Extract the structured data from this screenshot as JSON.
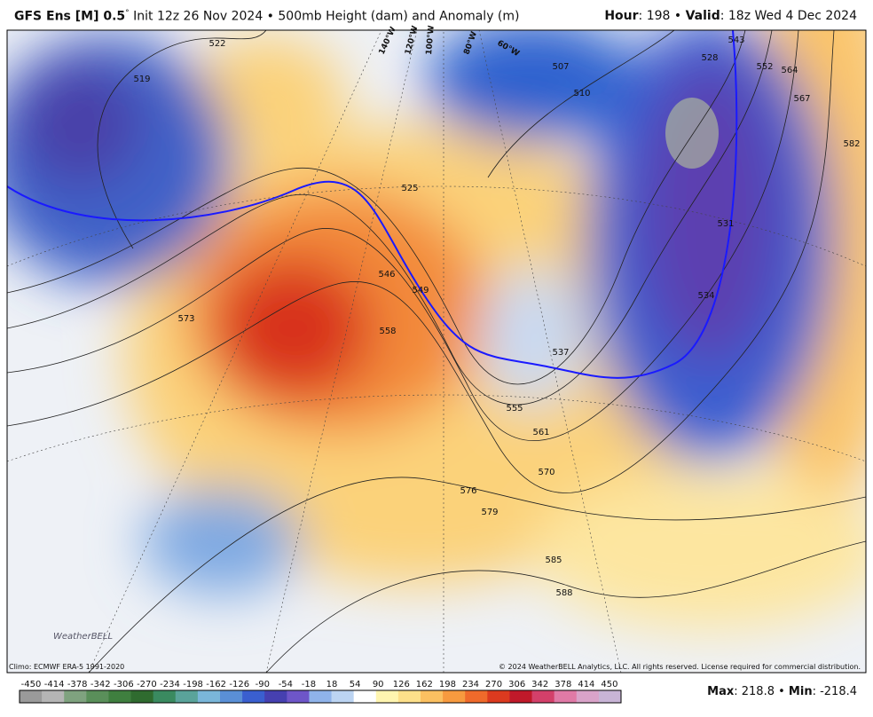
{
  "header": {
    "model": "GFS Ens [M] 0.5",
    "degree": "°",
    "description": "Init 12z 26 Nov 2024 • 500mb Height (dam) and Anomaly (m)",
    "hour_label": "Hour",
    "hour_value": ": 198 • ",
    "valid_label": "Valid",
    "valid_value": ": 18z Wed 4 Dec 2024"
  },
  "map": {
    "contour_labels": [
      "522",
      "519",
      "573",
      "546",
      "549",
      "558",
      "555",
      "561",
      "570",
      "576",
      "579",
      "585",
      "588",
      "507",
      "510",
      "528",
      "543",
      "552",
      "564",
      "567",
      "582",
      "531",
      "534",
      "525",
      "537"
    ],
    "longitude_labels": [
      "140°W",
      "120°W",
      "100°W",
      "80°W",
      "60°W"
    ]
  },
  "footer": {
    "climo": "Climo: ECMWF ERA-5 1991-2020",
    "copyright": "© 2024 WeatherBELL Analytics, LLC. All rights reserved. License required for commercial distribution.",
    "logo": "WeatherBELL"
  },
  "colorbar": {
    "ticks": [
      "-450",
      "-414",
      "-378",
      "-342",
      "-306",
      "-270",
      "-234",
      "-198",
      "-162",
      "-126",
      "-90",
      "-54",
      "-18",
      "18",
      "54",
      "90",
      "126",
      "162",
      "198",
      "234",
      "270",
      "306",
      "342",
      "378",
      "414",
      "450"
    ],
    "colors": [
      "#9a9a9a",
      "#b5b5b5",
      "#7fa27f",
      "#5a8f5a",
      "#3f7f3f",
      "#2f6b2f",
      "#3a8a60",
      "#5aa39a",
      "#7ab6d9",
      "#5a8fd6",
      "#3a5fcf",
      "#4640b0",
      "#6e56c8",
      "#8fb3ea",
      "#bcd4f2",
      "#ffffff",
      "#fff5b0",
      "#fde08a",
      "#fbc061",
      "#f79a3f",
      "#ef6a2b",
      "#dc3a1f",
      "#c0192a",
      "#d3406a",
      "#e07aa6",
      "#d9a3c9",
      "#c8b4d6"
    ],
    "max_label": "Max",
    "max_value": ": 218.8 • ",
    "min_label": "Min",
    "min_value": ": -218.4"
  }
}
